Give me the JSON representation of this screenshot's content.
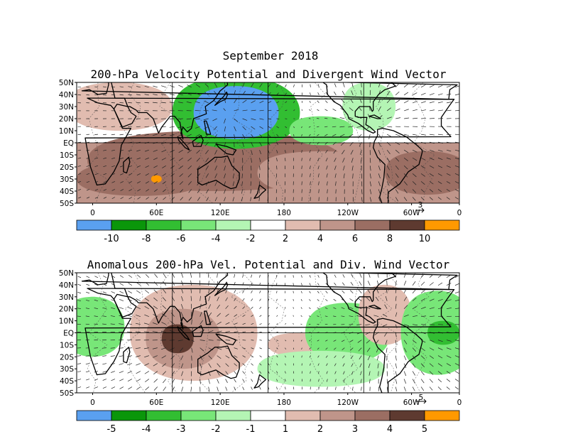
{
  "figure": {
    "title": "September 2018"
  },
  "colors": {
    "blue": "#5aa0f0",
    "green_dark": "#0a960a",
    "green_mid": "#32be32",
    "green_light": "#78e678",
    "green_pale": "#b4f5b4",
    "white": "#ffffff",
    "brown_pale": "#e1bcb0",
    "brown_light": "#bf958a",
    "brown_mid": "#9b6e63",
    "brown_dark": "#5e3a30",
    "orange": "#ff9900"
  },
  "panels": [
    {
      "id": "top",
      "title": "200-hPa Velocity Potential and Divergent Wind Vector",
      "lat_labels": [
        "50N",
        "40N",
        "30N",
        "20N",
        "10N",
        "EQ",
        "10S",
        "20S",
        "30S",
        "40S",
        "50S"
      ],
      "lon_labels": [
        "0",
        "60E",
        "120E",
        "180",
        "120W",
        "60W",
        "0"
      ],
      "vector_scale_label": "3",
      "colorbar_labels": [
        "-10",
        "-8",
        "-6",
        "-4",
        "-2",
        "2",
        "4",
        "6",
        "8",
        "10"
      ]
    },
    {
      "id": "bottom",
      "title": "Anomalous 200-hPa Vel. Potential and Div. Wind Vector",
      "lat_labels": [
        "50N",
        "40N",
        "30N",
        "20N",
        "10N",
        "EQ",
        "10S",
        "20S",
        "30S",
        "40S",
        "50S"
      ],
      "lon_labels": [
        "0",
        "60E",
        "120E",
        "180",
        "120W",
        "60W",
        "0"
      ],
      "vector_scale_label": "5",
      "colorbar_labels": [
        "-5",
        "-4",
        "-3",
        "-2",
        "-1",
        "1",
        "2",
        "3",
        "4",
        "5"
      ]
    }
  ]
}
